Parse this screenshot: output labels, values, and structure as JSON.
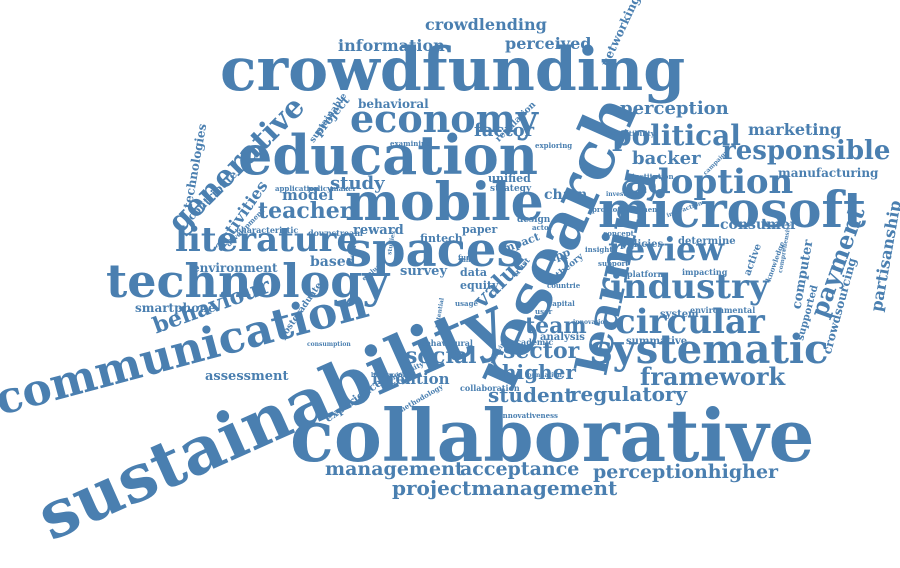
{
  "colors": {
    "word": "#4a7fb0",
    "background": "#ffffff"
  },
  "word_cloud": {
    "words": [
      {
        "text": "crowdfunding",
        "weight": 100
      },
      {
        "text": "collaborative",
        "weight": 96
      },
      {
        "text": "sustainability",
        "weight": 98
      },
      {
        "text": "research",
        "weight": 92
      },
      {
        "text": "learning",
        "weight": 60
      },
      {
        "text": "education",
        "weight": 70
      },
      {
        "text": "communication",
        "weight": 66
      },
      {
        "text": "technology",
        "weight": 64
      },
      {
        "text": "mobile",
        "weight": 60
      },
      {
        "text": "spaces",
        "weight": 58
      },
      {
        "text": "microsoft",
        "weight": 56
      },
      {
        "text": "systematic",
        "weight": 52
      },
      {
        "text": "economy",
        "weight": 44
      },
      {
        "text": "adoption",
        "weight": 40
      },
      {
        "text": "literature",
        "weight": 40
      },
      {
        "text": "industry",
        "weight": 40
      },
      {
        "text": "circular",
        "weight": 40
      },
      {
        "text": "review",
        "weight": 34
      },
      {
        "text": "generative",
        "weight": 30
      },
      {
        "text": "political",
        "weight": 30
      },
      {
        "text": "responsible",
        "weight": 30
      },
      {
        "text": "payment",
        "weight": 26
      },
      {
        "text": "framework",
        "weight": 24
      },
      {
        "text": "behaviour",
        "weight": 22
      },
      {
        "text": "social",
        "weight": 22
      },
      {
        "text": "sector",
        "weight": 22
      },
      {
        "text": "team",
        "weight": 22
      },
      {
        "text": "teacher",
        "weight": 22
      },
      {
        "text": "value",
        "weight": 22
      },
      {
        "text": "higher",
        "weight": 20
      },
      {
        "text": "student",
        "weight": 20
      },
      {
        "text": "regulatory",
        "weight": 20
      },
      {
        "text": "projectmanagement",
        "weight": 20
      },
      {
        "text": "perceptionhigher",
        "weight": 19
      },
      {
        "text": "acceptance",
        "weight": 19
      },
      {
        "text": "management",
        "weight": 18
      },
      {
        "text": "study",
        "weight": 18
      },
      {
        "text": "factor",
        "weight": 18
      },
      {
        "text": "perception",
        "weight": 18
      },
      {
        "text": "backer",
        "weight": 18
      },
      {
        "text": "information",
        "weight": 16
      },
      {
        "text": "perceived",
        "weight": 16
      },
      {
        "text": "crowdlending",
        "weight": 16
      },
      {
        "text": "activities",
        "weight": 16
      },
      {
        "text": "partisanship",
        "weight": 16
      },
      {
        "text": "marketing",
        "weight": 16
      },
      {
        "text": "intention",
        "weight": 15
      },
      {
        "text": "model",
        "weight": 15
      },
      {
        "text": "chain",
        "weight": 14
      },
      {
        "text": "consumer",
        "weight": 14
      },
      {
        "text": "based",
        "weight": 14
      },
      {
        "text": "reward",
        "weight": 13
      },
      {
        "text": "survey",
        "weight": 13
      },
      {
        "text": "technologies",
        "weight": 13
      },
      {
        "text": "computer",
        "weight": 13
      },
      {
        "text": "crowdsourcing",
        "weight": 12
      },
      {
        "text": "assessment",
        "weight": 12
      },
      {
        "text": "smartphone",
        "weight": 12
      },
      {
        "text": "environment",
        "weight": 12
      },
      {
        "text": "networking",
        "weight": 12
      },
      {
        "text": "manufacturing",
        "weight": 12
      },
      {
        "text": "behavioral",
        "weight": 12
      },
      {
        "text": "project",
        "weight": 12
      },
      {
        "text": "contribute",
        "weight": 11
      },
      {
        "text": "fintech",
        "weight": 11
      },
      {
        "text": "paper",
        "weight": 11
      },
      {
        "text": "unified",
        "weight": 11
      },
      {
        "text": "data",
        "weight": 11
      },
      {
        "text": "equity",
        "weight": 11
      },
      {
        "text": "experience",
        "weight": 11
      },
      {
        "text": "analysis",
        "weight": 10
      },
      {
        "text": "summative",
        "weight": 10
      },
      {
        "text": "policies",
        "weight": 10
      },
      {
        "text": "determine",
        "weight": 10
      },
      {
        "text": "system",
        "weight": 10
      },
      {
        "text": "supported",
        "weight": 10
      },
      {
        "text": "active",
        "weight": 10
      },
      {
        "text": "strategy",
        "weight": 9
      },
      {
        "text": "design",
        "weight": 9
      },
      {
        "text": "sustainable",
        "weight": 9
      },
      {
        "text": "regulation",
        "weight": 9
      },
      {
        "text": "postgraduate",
        "weight": 9
      },
      {
        "text": "downstream",
        "weight": 8
      },
      {
        "text": "characteristic",
        "weight": 8
      },
      {
        "text": "impacting",
        "weight": 8
      },
      {
        "text": "platform",
        "weight": 8
      },
      {
        "text": "environmental",
        "weight": 8
      },
      {
        "text": "behavioural",
        "weight": 8
      },
      {
        "text": "collaboration",
        "weight": 8
      },
      {
        "text": "academic",
        "weight": 8
      },
      {
        "text": "innovativeness",
        "weight": 7
      },
      {
        "text": "university",
        "weight": 7
      },
      {
        "text": "methodology",
        "weight": 7
      },
      {
        "text": "capital",
        "weight": 7
      },
      {
        "text": "usage",
        "weight": 7
      },
      {
        "text": "application",
        "weight": 7
      },
      {
        "text": "development",
        "weight": 7
      },
      {
        "text": "policymaker",
        "weight": 7
      },
      {
        "text": "examining",
        "weight": 7
      },
      {
        "text": "exploring",
        "weight": 7
      },
      {
        "text": "insight",
        "weight": 7
      },
      {
        "text": "promote",
        "weight": 7
      },
      {
        "text": "institution",
        "weight": 7
      },
      {
        "text": "segment",
        "weight": 7
      },
      {
        "text": "compatibility",
        "weight": 7
      },
      {
        "text": "support",
        "weight": 7
      },
      {
        "text": "countrie",
        "weight": 7
      },
      {
        "text": "concept",
        "weight": 7
      },
      {
        "text": "innovation",
        "weight": 6
      },
      {
        "text": "fund",
        "weight": 7
      },
      {
        "text": "user",
        "weight": 7
      },
      {
        "text": "actor",
        "weight": 7
      },
      {
        "text": "impact",
        "weight": 11
      },
      {
        "text": "app",
        "weight": 11
      },
      {
        "text": "theory",
        "weight": 9
      },
      {
        "text": "trust",
        "weight": 8
      },
      {
        "text": "evaluate",
        "weight": 6
      },
      {
        "text": "consumption",
        "weight": 6
      },
      {
        "text": "background",
        "weight": 6
      },
      {
        "text": "achieving",
        "weight": 6
      },
      {
        "text": "foundation",
        "weight": 6
      },
      {
        "text": "campaign",
        "weight": 6
      },
      {
        "text": "investment",
        "weight": 6
      },
      {
        "text": "interaction",
        "weight": 6
      },
      {
        "text": "knowledge",
        "weight": 7
      },
      {
        "text": "comprehensive",
        "weight": 6
      },
      {
        "text": "potential",
        "weight": 6
      },
      {
        "text": "aim",
        "weight": 6
      },
      {
        "text": "studies",
        "weight": 6
      }
    ]
  }
}
